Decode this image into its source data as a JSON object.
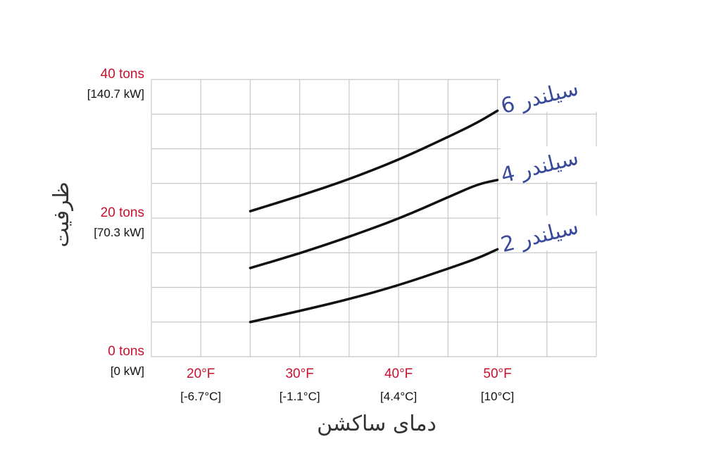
{
  "chart_data": {
    "type": "line",
    "title": "",
    "xlabel": "دمای ساکشن",
    "ylabel": "ظرفیت",
    "xlim": [
      15,
      60
    ],
    "ylim": [
      0,
      40
    ],
    "grid": true,
    "x_ticks": [
      {
        "value": 20,
        "label": "20°F",
        "sublabel": "[-6.7°C]"
      },
      {
        "value": 30,
        "label": "30°F",
        "sublabel": "[-1.1°C]"
      },
      {
        "value": 40,
        "label": "40°F",
        "sublabel": "[4.4°C]"
      },
      {
        "value": 50,
        "label": "50°F",
        "sublabel": "[10°C]"
      }
    ],
    "y_ticks": [
      {
        "value": 0,
        "label": "0 tons",
        "sublabel": "[0 kW]"
      },
      {
        "value": 20,
        "label": "20 tons",
        "sublabel": "[70.3 kW]"
      },
      {
        "value": 40,
        "label": "40 tons",
        "sublabel": "[140.7 kW]"
      }
    ],
    "series": [
      {
        "name": "سیلندر 6",
        "x": [
          25,
          30,
          35,
          40,
          45,
          48,
          50
        ],
        "y": [
          21,
          23.2,
          25.6,
          28.4,
          31.7,
          33.8,
          35.5
        ]
      },
      {
        "name": "سیلندر 4",
        "x": [
          25,
          30,
          35,
          40,
          45,
          48,
          50
        ],
        "y": [
          12.8,
          14.9,
          17.3,
          19.9,
          23,
          24.9,
          25.5
        ]
      },
      {
        "name": "سیلندر 2",
        "x": [
          25,
          30,
          35,
          40,
          45,
          48,
          50
        ],
        "y": [
          5,
          6.6,
          8.3,
          10.3,
          12.7,
          14.2,
          15.5
        ]
      }
    ],
    "colors": {
      "line": "#111111",
      "grid": "#c8c8c8",
      "tick_primary": "#c8102e",
      "series_label": "#3a4a9a"
    }
  }
}
